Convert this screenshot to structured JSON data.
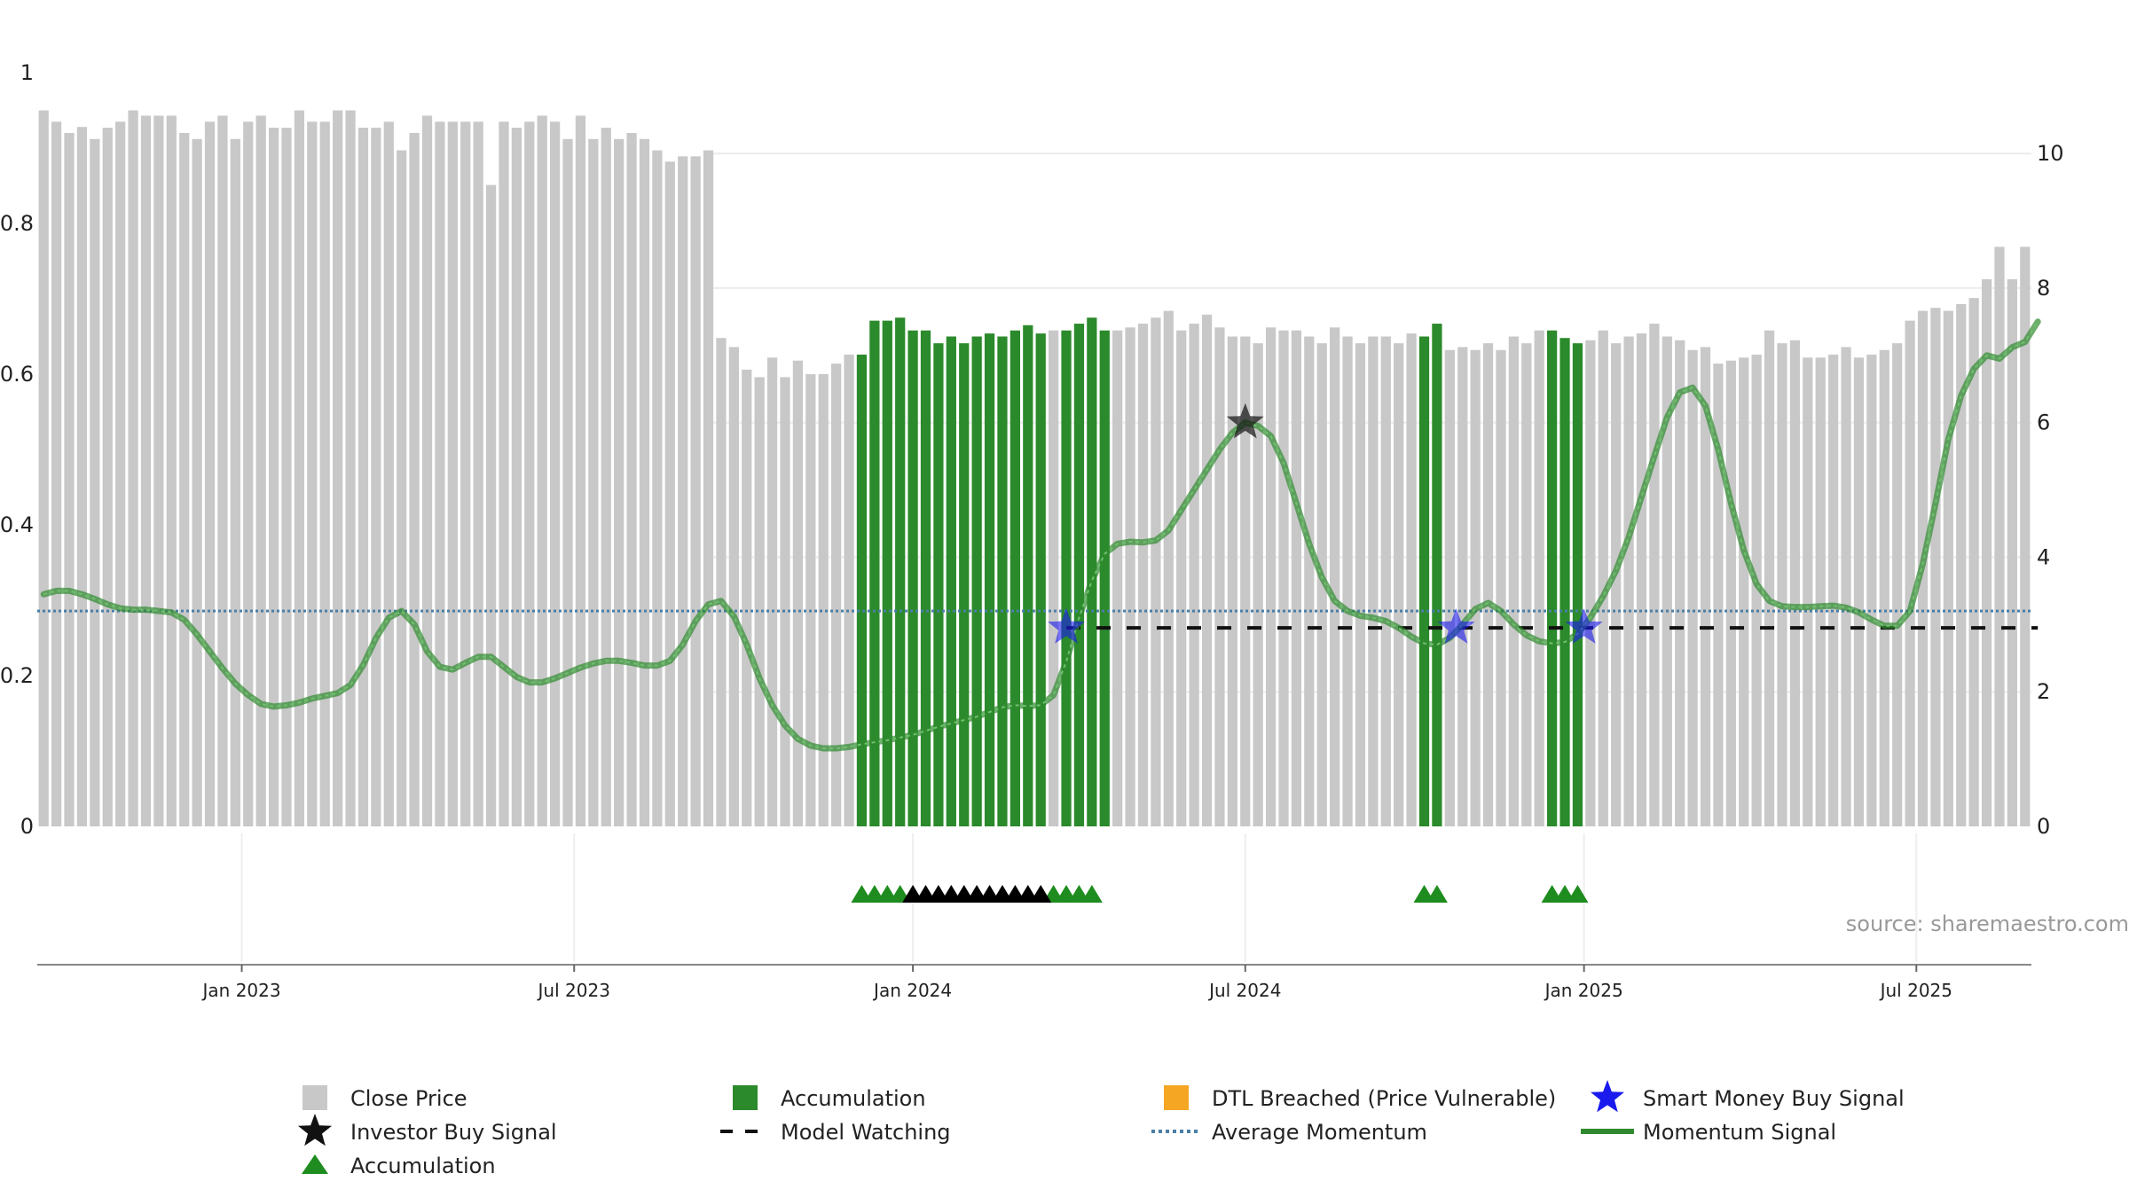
{
  "chart_data": {
    "type": "bar",
    "title": "",
    "source": "source: sharemaestro.com",
    "left_axis": {
      "ticks": [
        "0",
        "0.2",
        "0.4",
        "0.6",
        "0.8",
        "1"
      ],
      "ylim": [
        0,
        1
      ]
    },
    "right_axis": {
      "ticks": [
        "0",
        "2",
        "4",
        "6",
        "8",
        "10"
      ],
      "ylim": [
        0,
        11.2
      ]
    },
    "x_ticks": [
      {
        "label": "Jan 2023",
        "week": 15.5
      },
      {
        "label": "Jul 2023",
        "week": 41.5
      },
      {
        "label": "Jan 2024",
        "week": 68
      },
      {
        "label": "Jul 2024",
        "week": 94
      },
      {
        "label": "Jan 2025",
        "week": 120.5
      },
      {
        "label": "Jul 2025",
        "week": 146.5
      }
    ],
    "close_price": [
      0.95,
      0.935,
      0.92,
      0.928,
      0.912,
      0.927,
      0.935,
      0.95,
      0.943,
      0.943,
      0.943,
      0.92,
      0.912,
      0.935,
      0.943,
      0.912,
      0.935,
      0.943,
      0.927,
      0.927,
      0.95,
      0.935,
      0.935,
      0.95,
      0.95,
      0.927,
      0.927,
      0.935,
      0.897,
      0.92,
      0.943,
      0.935,
      0.935,
      0.935,
      0.935,
      0.851,
      0.935,
      0.927,
      0.935,
      0.943,
      0.935,
      0.912,
      0.943,
      0.912,
      0.927,
      0.912,
      0.92,
      0.912,
      0.897,
      0.882,
      0.889,
      0.889,
      0.897,
      0.648,
      0.636,
      0.606,
      0.596,
      0.622,
      0.596,
      0.618,
      0.6,
      0.6,
      0.614,
      0.626,
      0.626,
      0.671,
      0.671,
      0.675,
      0.658,
      0.658,
      0.641,
      0.65,
      0.641,
      0.65,
      0.654,
      0.65,
      0.658,
      0.665,
      0.654,
      0.658,
      0.658,
      0.667,
      0.675,
      0.658,
      0.658,
      0.662,
      0.667,
      0.675,
      0.684,
      0.658,
      0.667,
      0.679,
      0.662,
      0.65,
      0.65,
      0.641,
      0.662,
      0.658,
      0.658,
      0.65,
      0.641,
      0.662,
      0.65,
      0.641,
      0.65,
      0.65,
      0.641,
      0.654,
      0.65,
      0.667,
      0.632,
      0.636,
      0.632,
      0.641,
      0.632,
      0.65,
      0.641,
      0.658,
      0.658,
      0.648,
      0.641,
      0.645,
      0.658,
      0.641,
      0.65,
      0.654,
      0.667,
      0.65,
      0.645,
      0.632,
      0.636,
      0.614,
      0.618,
      0.622,
      0.626,
      0.658,
      0.641,
      0.645,
      0.622,
      0.622,
      0.626,
      0.636,
      0.622,
      0.626,
      0.632,
      0.641,
      0.671,
      0.684,
      0.688,
      0.684,
      0.693,
      0.701,
      0.726,
      0.769,
      0.726,
      0.769
    ],
    "accumulation_weeks": [
      64,
      65,
      66,
      67,
      68,
      69,
      70,
      71,
      72,
      73,
      74,
      75,
      76,
      77,
      78,
      80,
      81,
      82,
      83,
      108,
      109,
      118,
      119,
      120
    ],
    "momentum_signal": [
      [
        0,
        3.45
      ],
      [
        1,
        3.5
      ],
      [
        2,
        3.5
      ],
      [
        3,
        3.45
      ],
      [
        4,
        3.38
      ],
      [
        5,
        3.3
      ],
      [
        6,
        3.24
      ],
      [
        7,
        3.22
      ],
      [
        8,
        3.22
      ],
      [
        9,
        3.2
      ],
      [
        10,
        3.18
      ],
      [
        11,
        3.07
      ],
      [
        12,
        2.85
      ],
      [
        13,
        2.6
      ],
      [
        14,
        2.35
      ],
      [
        15,
        2.12
      ],
      [
        16,
        1.95
      ],
      [
        17,
        1.82
      ],
      [
        18,
        1.78
      ],
      [
        19,
        1.8
      ],
      [
        20,
        1.84
      ],
      [
        21,
        1.9
      ],
      [
        22,
        1.94
      ],
      [
        23,
        1.98
      ],
      [
        24,
        2.1
      ],
      [
        25,
        2.4
      ],
      [
        26,
        2.8
      ],
      [
        27,
        3.1
      ],
      [
        28,
        3.2
      ],
      [
        29,
        3.0
      ],
      [
        30,
        2.6
      ],
      [
        31,
        2.37
      ],
      [
        32,
        2.33
      ],
      [
        33,
        2.43
      ],
      [
        34,
        2.52
      ],
      [
        35,
        2.52
      ],
      [
        36,
        2.37
      ],
      [
        37,
        2.22
      ],
      [
        38,
        2.14
      ],
      [
        39,
        2.14
      ],
      [
        40,
        2.2
      ],
      [
        41,
        2.28
      ],
      [
        42,
        2.36
      ],
      [
        43,
        2.42
      ],
      [
        44,
        2.46
      ],
      [
        45,
        2.46
      ],
      [
        46,
        2.43
      ],
      [
        47,
        2.39
      ],
      [
        48,
        2.39
      ],
      [
        49,
        2.46
      ],
      [
        50,
        2.7
      ],
      [
        51,
        3.05
      ],
      [
        52,
        3.3
      ],
      [
        53,
        3.35
      ],
      [
        54,
        3.12
      ],
      [
        55,
        2.7
      ],
      [
        56,
        2.2
      ],
      [
        57,
        1.8
      ],
      [
        58,
        1.5
      ],
      [
        59,
        1.3
      ],
      [
        60,
        1.2
      ],
      [
        61,
        1.16
      ],
      [
        62,
        1.16
      ],
      [
        63,
        1.18
      ],
      [
        64,
        1.22
      ],
      [
        65,
        1.25
      ],
      [
        66,
        1.28
      ],
      [
        67,
        1.32
      ],
      [
        68,
        1.36
      ],
      [
        69,
        1.42
      ],
      [
        70,
        1.48
      ],
      [
        71,
        1.53
      ],
      [
        72,
        1.58
      ],
      [
        73,
        1.63
      ],
      [
        74,
        1.7
      ],
      [
        75,
        1.77
      ],
      [
        76,
        1.8
      ],
      [
        77,
        1.79
      ],
      [
        78,
        1.8
      ],
      [
        79,
        1.95
      ],
      [
        80,
        2.45
      ],
      [
        81,
        3.1
      ],
      [
        82,
        3.65
      ],
      [
        83,
        4.05
      ],
      [
        84,
        4.2
      ],
      [
        85,
        4.23
      ],
      [
        86,
        4.22
      ],
      [
        87,
        4.25
      ],
      [
        88,
        4.4
      ],
      [
        89,
        4.7
      ],
      [
        90,
        5.0
      ],
      [
        91,
        5.3
      ],
      [
        92,
        5.6
      ],
      [
        93,
        5.85
      ],
      [
        94,
        6.0
      ],
      [
        95,
        5.95
      ],
      [
        96,
        5.8
      ],
      [
        97,
        5.4
      ],
      [
        98,
        4.8
      ],
      [
        99,
        4.2
      ],
      [
        100,
        3.7
      ],
      [
        101,
        3.35
      ],
      [
        102,
        3.2
      ],
      [
        103,
        3.13
      ],
      [
        104,
        3.1
      ],
      [
        105,
        3.05
      ],
      [
        106,
        2.95
      ],
      [
        107,
        2.82
      ],
      [
        108,
        2.72
      ],
      [
        109,
        2.7
      ],
      [
        110,
        2.8
      ],
      [
        111,
        3.0
      ],
      [
        112,
        3.23
      ],
      [
        113,
        3.32
      ],
      [
        114,
        3.2
      ],
      [
        115,
        3.0
      ],
      [
        116,
        2.84
      ],
      [
        117,
        2.75
      ],
      [
        118,
        2.72
      ],
      [
        119,
        2.74
      ],
      [
        120,
        2.86
      ],
      [
        121,
        3.1
      ],
      [
        122,
        3.42
      ],
      [
        123,
        3.8
      ],
      [
        124,
        4.3
      ],
      [
        125,
        4.9
      ],
      [
        126,
        5.5
      ],
      [
        127,
        6.08
      ],
      [
        128,
        6.45
      ],
      [
        129,
        6.52
      ],
      [
        130,
        6.25
      ],
      [
        131,
        5.6
      ],
      [
        132,
        4.8
      ],
      [
        133,
        4.1
      ],
      [
        134,
        3.6
      ],
      [
        135,
        3.35
      ],
      [
        136,
        3.27
      ],
      [
        137,
        3.26
      ],
      [
        138,
        3.26
      ],
      [
        139,
        3.27
      ],
      [
        140,
        3.28
      ],
      [
        141,
        3.25
      ],
      [
        142,
        3.18
      ],
      [
        143,
        3.07
      ],
      [
        144,
        2.98
      ],
      [
        145,
        2.98
      ],
      [
        146,
        3.2
      ],
      [
        147,
        3.9
      ],
      [
        148,
        4.8
      ],
      [
        149,
        5.75
      ],
      [
        150,
        6.4
      ],
      [
        151,
        6.8
      ],
      [
        152,
        7.0
      ],
      [
        153,
        6.95
      ],
      [
        154,
        7.12
      ],
      [
        155,
        7.2
      ],
      [
        156,
        7.5
      ]
    ],
    "average_momentum": 3.2,
    "model_watching": {
      "from_week": 80,
      "to_week": 156,
      "value": 2.95
    },
    "investor_buy_signal": [
      {
        "week": 94,
        "value": 6.0
      }
    ],
    "smart_money_buy_signal": [
      {
        "week": 80,
        "value": 2.95
      },
      {
        "week": 110.5,
        "value": 2.95
      },
      {
        "week": 120.5,
        "value": 2.95
      }
    ],
    "accumulation_markers_green": [
      64,
      65,
      66,
      67,
      79,
      80,
      81,
      82,
      108,
      109,
      118,
      119,
      120
    ],
    "accumulation_markers_black": [
      68,
      69,
      70,
      71,
      72,
      73,
      74,
      75,
      76,
      77,
      78
    ],
    "legend": [
      {
        "label": "Close Price",
        "symbol": "gray-square"
      },
      {
        "label": "Accumulation",
        "symbol": "green-square"
      },
      {
        "label": "DTL Breached (Price Vulnerable)",
        "symbol": "orange-square"
      },
      {
        "label": "Smart Money Buy Signal",
        "symbol": "blue-star"
      },
      {
        "label": "Investor Buy Signal",
        "symbol": "black-star"
      },
      {
        "label": "Model Watching",
        "symbol": "black-dash"
      },
      {
        "label": "Average Momentum",
        "symbol": "blue-dotted"
      },
      {
        "label": "Momentum Signal",
        "symbol": "green-line"
      },
      {
        "label": "Accumulation",
        "symbol": "green-triangle"
      }
    ],
    "colors": {
      "close": "#c8c8c8",
      "accum": "#2b8a2b",
      "dtl": "#f5a623",
      "momentum": "#2f8a2f",
      "avg": "#4a7fa8",
      "star_blue": "#1a1aee",
      "star_black": "#111111",
      "tri_green": "#1e8c1e",
      "tri_black": "#000000"
    }
  }
}
